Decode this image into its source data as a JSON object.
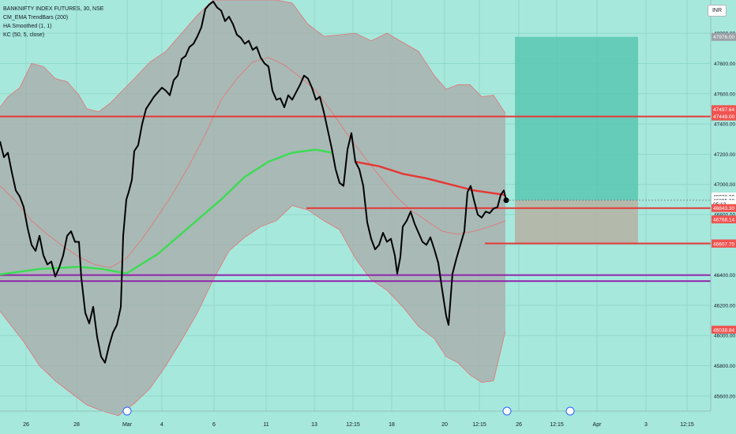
{
  "legend": {
    "symbol": "BANKNIFTY INDEX FUTURES, 30, NSE",
    "ind1": "CM_EMA TrendBars (200)",
    "ind2": "HA Smoothed (1, 1)",
    "ind3": "KC (50, 5, close)"
  },
  "currency": "INR",
  "colors": {
    "background": "#a7e8dd",
    "grid": "#8fd9c9",
    "price": "#000000",
    "band_fill": "#a9aaa8",
    "band_line": "#e57373",
    "ema_green": "#3ddc54",
    "ema_red": "#e53935",
    "hline_red": "#e53935",
    "hline_purple": "#8e24aa",
    "profit_box": "#55c4b0",
    "loss_box": "#b5b2a2",
    "label_red": "#ef5350"
  },
  "chart_data": {
    "type": "line",
    "title": "BANKNIFTY INDEX FUTURES, 30, NSE",
    "ylim": [
      45500,
      48220
    ],
    "y_ticks": [
      45600,
      45800,
      46000,
      46200,
      46400,
      46600,
      46800,
      47000,
      47200,
      47400,
      47600,
      47800,
      48000
    ],
    "y_tick_labels": [
      "45600.00",
      "45800.00",
      "46000.00",
      "46200.00",
      "46400.00",
      "46600.00",
      "46800.00",
      "47000.00",
      "47200.00",
      "47400.00",
      "47600.00",
      "47800.00",
      "48000.00"
    ],
    "x_tick_labels": [
      "26",
      "28",
      "Mar",
      "4",
      "6",
      "11",
      "13",
      "12:15",
      "18",
      "20",
      "12:15",
      "26",
      "12:15",
      "Apr",
      "3",
      "12:15"
    ],
    "price_series": [
      [
        0,
        47285
      ],
      [
        5,
        47180
      ],
      [
        10,
        47210
      ],
      [
        15,
        47080
      ],
      [
        20,
        46960
      ],
      [
        25,
        46920
      ],
      [
        30,
        46850
      ],
      [
        35,
        46710
      ],
      [
        40,
        46600
      ],
      [
        45,
        46560
      ],
      [
        50,
        46660
      ],
      [
        55,
        46530
      ],
      [
        60,
        46470
      ],
      [
        65,
        46490
      ],
      [
        70,
        46390
      ],
      [
        75,
        46450
      ],
      [
        80,
        46530
      ],
      [
        85,
        46660
      ],
      [
        90,
        46690
      ],
      [
        95,
        46620
      ],
      [
        100,
        46620
      ],
      [
        103,
        46380
      ],
      [
        108,
        46150
      ],
      [
        113,
        46080
      ],
      [
        118,
        46190
      ],
      [
        123,
        45990
      ],
      [
        128,
        45860
      ],
      [
        133,
        45820
      ],
      [
        138,
        45930
      ],
      [
        143,
        46020
      ],
      [
        148,
        46070
      ],
      [
        153,
        46190
      ],
      [
        156,
        46660
      ],
      [
        160,
        46900
      ],
      [
        163,
        46950
      ],
      [
        167,
        47030
      ],
      [
        170,
        47220
      ],
      [
        175,
        47260
      ],
      [
        180,
        47400
      ],
      [
        185,
        47500
      ],
      [
        190,
        47540
      ],
      [
        195,
        47580
      ],
      [
        200,
        47610
      ],
      [
        205,
        47640
      ],
      [
        210,
        47620
      ],
      [
        215,
        47590
      ],
      [
        220,
        47690
      ],
      [
        225,
        47720
      ],
      [
        230,
        47830
      ],
      [
        235,
        47850
      ],
      [
        240,
        47910
      ],
      [
        245,
        47930
      ],
      [
        250,
        47980
      ],
      [
        255,
        48040
      ],
      [
        260,
        48160
      ],
      [
        265,
        48190
      ],
      [
        270,
        48210
      ],
      [
        275,
        48170
      ],
      [
        280,
        48150
      ],
      [
        285,
        48080
      ],
      [
        290,
        48110
      ],
      [
        295,
        48060
      ],
      [
        300,
        47990
      ],
      [
        305,
        47970
      ],
      [
        310,
        47930
      ],
      [
        315,
        47950
      ],
      [
        320,
        47890
      ],
      [
        325,
        47910
      ],
      [
        330,
        47840
      ],
      [
        335,
        47800
      ],
      [
        340,
        47780
      ],
      [
        345,
        47620
      ],
      [
        350,
        47560
      ],
      [
        355,
        47570
      ],
      [
        360,
        47510
      ],
      [
        365,
        47590
      ],
      [
        370,
        47560
      ],
      [
        375,
        47610
      ],
      [
        380,
        47660
      ],
      [
        385,
        47720
      ],
      [
        390,
        47700
      ],
      [
        395,
        47640
      ],
      [
        400,
        47560
      ],
      [
        405,
        47580
      ],
      [
        410,
        47480
      ],
      [
        415,
        47360
      ],
      [
        420,
        47240
      ],
      [
        425,
        47100
      ],
      [
        430,
        47010
      ],
      [
        435,
        46990
      ],
      [
        440,
        47230
      ],
      [
        445,
        47340
      ],
      [
        450,
        47150
      ],
      [
        455,
        47100
      ],
      [
        460,
        46990
      ],
      [
        465,
        46750
      ],
      [
        470,
        46640
      ],
      [
        475,
        46570
      ],
      [
        480,
        46600
      ],
      [
        485,
        46680
      ],
      [
        490,
        46620
      ],
      [
        495,
        46640
      ],
      [
        500,
        46530
      ],
      [
        503,
        46410
      ],
      [
        507,
        46520
      ],
      [
        510,
        46720
      ],
      [
        515,
        46760
      ],
      [
        520,
        46820
      ],
      [
        525,
        46740
      ],
      [
        530,
        46680
      ],
      [
        535,
        46620
      ],
      [
        540,
        46600
      ],
      [
        545,
        46650
      ],
      [
        550,
        46570
      ],
      [
        555,
        46480
      ],
      [
        560,
        46300
      ],
      [
        565,
        46130
      ],
      [
        568,
        46070
      ],
      [
        573,
        46410
      ],
      [
        578,
        46510
      ],
      [
        583,
        46600
      ],
      [
        588,
        46690
      ],
      [
        592,
        46950
      ],
      [
        596,
        46990
      ],
      [
        600,
        46900
      ],
      [
        605,
        46800
      ],
      [
        610,
        46780
      ],
      [
        615,
        46820
      ],
      [
        620,
        46810
      ],
      [
        625,
        46840
      ],
      [
        630,
        46850
      ],
      [
        634,
        46930
      ],
      [
        638,
        46960
      ],
      [
        641,
        46895
      ]
    ],
    "ema_series": [
      [
        0,
        46405
      ],
      [
        50,
        46440
      ],
      [
        100,
        46455
      ],
      [
        130,
        46440
      ],
      [
        160,
        46410
      ],
      [
        200,
        46540
      ],
      [
        240,
        46720
      ],
      [
        280,
        46900
      ],
      [
        310,
        47050
      ],
      [
        340,
        47150
      ],
      [
        370,
        47210
      ],
      [
        400,
        47230
      ],
      [
        420,
        47210
      ],
      [
        450,
        47150
      ],
      [
        480,
        47120
      ],
      [
        510,
        47070
      ],
      [
        540,
        47040
      ],
      [
        570,
        47000
      ],
      [
        600,
        46960
      ],
      [
        640,
        46930
      ]
    ],
    "ema_green_range": [
      160,
      430
    ],
    "band_upper": [
      [
        0,
        47510
      ],
      [
        10,
        47580
      ],
      [
        25,
        47640
      ],
      [
        40,
        47800
      ],
      [
        55,
        47780
      ],
      [
        70,
        47700
      ],
      [
        85,
        47680
      ],
      [
        100,
        47590
      ],
      [
        110,
        47500
      ],
      [
        125,
        47480
      ],
      [
        140,
        47540
      ],
      [
        155,
        47620
      ],
      [
        170,
        47700
      ],
      [
        190,
        47810
      ],
      [
        210,
        47880
      ],
      [
        230,
        48000
      ],
      [
        250,
        48120
      ],
      [
        270,
        48220
      ],
      [
        300,
        48220
      ],
      [
        330,
        48220
      ],
      [
        350,
        48220
      ],
      [
        370,
        48200
      ],
      [
        390,
        48060
      ],
      [
        410,
        47980
      ],
      [
        430,
        47990
      ],
      [
        450,
        48000
      ],
      [
        470,
        47950
      ],
      [
        490,
        48000
      ],
      [
        510,
        47940
      ],
      [
        530,
        47880
      ],
      [
        550,
        47720
      ],
      [
        565,
        47630
      ],
      [
        580,
        47660
      ],
      [
        595,
        47660
      ],
      [
        610,
        47580
      ],
      [
        625,
        47590
      ],
      [
        640,
        47470
      ]
    ],
    "band_mid": [
      [
        0,
        46990
      ],
      [
        20,
        46890
      ],
      [
        40,
        46760
      ],
      [
        60,
        46670
      ],
      [
        80,
        46590
      ],
      [
        100,
        46520
      ],
      [
        120,
        46470
      ],
      [
        140,
        46450
      ],
      [
        160,
        46510
      ],
      [
        180,
        46640
      ],
      [
        200,
        46790
      ],
      [
        220,
        46950
      ],
      [
        240,
        47130
      ],
      [
        260,
        47330
      ],
      [
        280,
        47560
      ],
      [
        300,
        47700
      ],
      [
        320,
        47810
      ],
      [
        340,
        47840
      ],
      [
        360,
        47790
      ],
      [
        380,
        47710
      ],
      [
        400,
        47620
      ],
      [
        420,
        47480
      ],
      [
        440,
        47330
      ],
      [
        460,
        47190
      ],
      [
        480,
        47060
      ],
      [
        500,
        46930
      ],
      [
        520,
        46830
      ],
      [
        540,
        46760
      ],
      [
        560,
        46690
      ],
      [
        580,
        46670
      ],
      [
        600,
        46690
      ],
      [
        620,
        46720
      ],
      [
        640,
        46760
      ]
    ],
    "band_lower": [
      [
        0,
        46160
      ],
      [
        15,
        46060
      ],
      [
        30,
        45960
      ],
      [
        50,
        45800
      ],
      [
        70,
        45700
      ],
      [
        90,
        45620
      ],
      [
        110,
        45540
      ],
      [
        130,
        45500
      ],
      [
        150,
        45470
      ],
      [
        170,
        45550
      ],
      [
        190,
        45650
      ],
      [
        210,
        45800
      ],
      [
        230,
        45970
      ],
      [
        250,
        46150
      ],
      [
        270,
        46370
      ],
      [
        290,
        46560
      ],
      [
        310,
        46650
      ],
      [
        330,
        46720
      ],
      [
        350,
        46760
      ],
      [
        370,
        46860
      ],
      [
        390,
        46830
      ],
      [
        410,
        46760
      ],
      [
        430,
        46700
      ],
      [
        450,
        46510
      ],
      [
        470,
        46370
      ],
      [
        490,
        46300
      ],
      [
        510,
        46190
      ],
      [
        530,
        46060
      ],
      [
        550,
        45980
      ],
      [
        565,
        45860
      ],
      [
        580,
        45820
      ],
      [
        595,
        45740
      ],
      [
        610,
        45690
      ],
      [
        625,
        45700
      ],
      [
        640,
        46030
      ]
    ],
    "hlines": [
      {
        "price": 47449,
        "x_start": 0,
        "x_end": 900,
        "color": "red"
      },
      {
        "price": 46843,
        "x_start": 388,
        "x_end": 900,
        "color": "red"
      },
      {
        "price": 46609.55,
        "x_start": 614,
        "x_end": 900,
        "color": "red"
      },
      {
        "price": 46400,
        "x_start": 0,
        "x_end": 900,
        "color": "purple"
      },
      {
        "price": 46360,
        "x_start": 0,
        "x_end": 900,
        "color": "purple"
      }
    ],
    "position_box": {
      "x_start": 652,
      "x_end": 808,
      "target": 47976,
      "entry": 46895,
      "stop": 46609.55
    },
    "labels": [
      {
        "price": 47976,
        "text": "47976.00",
        "style": "gray"
      },
      {
        "price": 47497.64,
        "text": "47497.64",
        "style": "red"
      },
      {
        "price": 47449,
        "text": "47449.00",
        "style": "red"
      },
      {
        "price": 46920.2,
        "text": "46920.20",
        "style": "white"
      },
      {
        "price": 46895.2,
        "text": "46895.20",
        "style": "white"
      },
      {
        "price": 46870,
        "text": "05:13",
        "style": "white"
      },
      {
        "price": 46843.3,
        "text": "46843.30",
        "style": "red"
      },
      {
        "price": 46768.14,
        "text": "46768.14",
        "style": "red"
      },
      {
        "price": 46609.55,
        "text": "46609.55",
        "style": "red"
      },
      {
        "price": 46607.7,
        "text": "46607.70",
        "style": "red"
      },
      {
        "price": 46038.84,
        "text": "46038.84",
        "style": "red"
      }
    ]
  }
}
